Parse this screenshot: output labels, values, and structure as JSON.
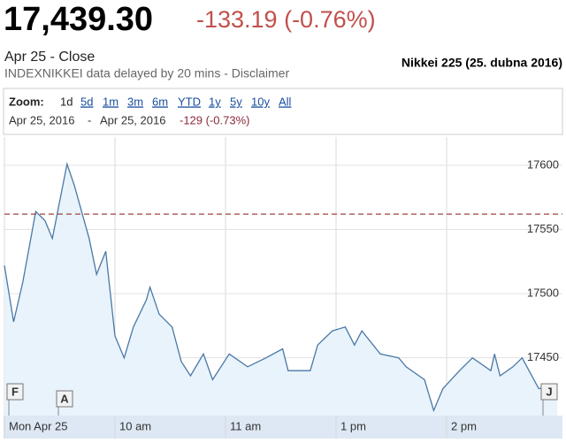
{
  "header": {
    "price": "17,439.30",
    "change": "-133.19 (-0.76%)",
    "status": "Apr 25 - Close",
    "source": "INDEXNIKKEI data delayed by 20 mins - Disclaimer",
    "caption": "Nikkei 225 (25. dubna 2016)"
  },
  "zoom": {
    "label": "Zoom:",
    "options": [
      "1d",
      "5d",
      "1m",
      "3m",
      "6m",
      "YTD",
      "1y",
      "5y",
      "10y",
      "All"
    ]
  },
  "range": {
    "from": "Apr 25, 2016",
    "sep": "-",
    "to": "Apr 25, 2016",
    "change": "-129 (-0.73%)"
  },
  "chart_data": {
    "type": "line",
    "x": [
      0,
      5,
      10,
      17,
      22,
      26,
      34,
      38,
      46,
      50,
      55,
      60,
      65,
      70,
      77,
      79,
      84,
      91,
      96,
      101,
      108,
      113,
      122,
      132,
      142,
      151,
      154,
      166,
      170,
      178,
      185,
      190,
      194,
      204,
      214,
      218,
      228,
      233,
      238,
      247,
      254,
      264,
      266,
      269,
      276,
      281,
      290,
      300
    ],
    "series": [
      {
        "name": "Nikkei 225",
        "color": "#4a78a6",
        "values": [
          17522,
          17478,
          17509,
          17564,
          17557,
          17543,
          17601,
          17584,
          17543,
          17515,
          17533,
          17467,
          17450,
          17474,
          17495,
          17505,
          17484,
          17474,
          17447,
          17436,
          17453,
          17433,
          17453,
          17443,
          17450,
          17457,
          17440,
          17440,
          17460,
          17471,
          17474,
          17460,
          17471,
          17453,
          17450,
          17443,
          17433,
          17409,
          17426,
          17440,
          17450,
          17440,
          17453,
          17436,
          17443,
          17450,
          17426,
          17429
        ]
      }
    ],
    "xlim": [
      0,
      300
    ],
    "xticks": [
      {
        "value": 0,
        "label": "Mon Apr 25"
      },
      {
        "value": 60,
        "label": "10 am"
      },
      {
        "value": 120,
        "label": "11 am"
      },
      {
        "value": 180,
        "label": "1 pm"
      },
      {
        "value": 240,
        "label": "2 pm"
      }
    ],
    "ylim": [
      17405,
      17622
    ],
    "yticks": [
      17450,
      17500,
      17550,
      17600
    ],
    "ref_line": 17562,
    "ref_color": "#a0443c",
    "grid": true,
    "flags": [
      "F",
      "A",
      "J"
    ]
  }
}
